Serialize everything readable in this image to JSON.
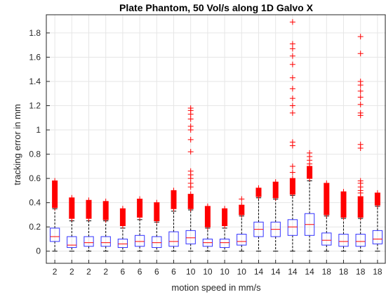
{
  "chart_data": {
    "type": "boxplot",
    "title": "Plate Phantom, 50 Vol/s along 1D Galvo X",
    "xlabel": "motion speed in mm/s",
    "ylabel": "tracking error in mm",
    "ylim": [
      -0.1,
      1.95
    ],
    "yticks": [
      "0",
      "0.2",
      "0.4",
      "0.6",
      "0.8",
      "1",
      "1.2",
      "1.4",
      "1.6",
      "1.8"
    ],
    "grid": true,
    "categories": [
      "2",
      "2",
      "2",
      "2",
      "6",
      "6",
      "6",
      "6",
      "10",
      "10",
      "10",
      "10",
      "14",
      "14",
      "14",
      "14",
      "18",
      "18",
      "18",
      "18"
    ],
    "colors": {
      "box": "#3333ff",
      "median": "#ff0000",
      "outlier": "#ff0000",
      "whisker": "#000000",
      "grid": "#e6e6e6",
      "axis": "#262626"
    },
    "boxes": [
      {
        "q1": 0.08,
        "median": 0.12,
        "q3": 0.19,
        "whisker_low": 0.0,
        "whisker_high": 0.35,
        "outlier_range": [
          0.36,
          0.58
        ]
      },
      {
        "q1": 0.03,
        "median": 0.05,
        "q3": 0.12,
        "whisker_low": 0.0,
        "whisker_high": 0.25,
        "outlier_range": [
          0.27,
          0.44
        ]
      },
      {
        "q1": 0.04,
        "median": 0.07,
        "q3": 0.12,
        "whisker_low": 0.0,
        "whisker_high": 0.25,
        "outlier_range": [
          0.27,
          0.42
        ]
      },
      {
        "q1": 0.04,
        "median": 0.07,
        "q3": 0.12,
        "whisker_low": 0.0,
        "whisker_high": 0.25,
        "outlier_range": [
          0.26,
          0.41
        ]
      },
      {
        "q1": 0.03,
        "median": 0.06,
        "q3": 0.1,
        "whisker_low": 0.0,
        "whisker_high": 0.19,
        "outlier_range": [
          0.21,
          0.35
        ]
      },
      {
        "q1": 0.04,
        "median": 0.08,
        "q3": 0.13,
        "whisker_low": 0.0,
        "whisker_high": 0.26,
        "outlier_range": [
          0.28,
          0.43
        ]
      },
      {
        "q1": 0.03,
        "median": 0.07,
        "q3": 0.12,
        "whisker_low": 0.0,
        "whisker_high": 0.24,
        "outlier_range": [
          0.25,
          0.4
        ]
      },
      {
        "q1": 0.04,
        "median": 0.08,
        "q3": 0.16,
        "whisker_low": 0.0,
        "whisker_high": 0.33,
        "outlier_range": [
          0.35,
          0.5
        ]
      },
      {
        "q1": 0.06,
        "median": 0.11,
        "q3": 0.17,
        "whisker_low": 0.0,
        "whisker_high": 0.34,
        "outlier_range": [
          0.35,
          0.47
        ],
        "extra_outliers": [
          0.53,
          0.56,
          0.6,
          0.63,
          0.66,
          0.82,
          0.92,
          1.0,
          1.03,
          1.09,
          1.13,
          1.16,
          1.18
        ]
      },
      {
        "q1": 0.04,
        "median": 0.07,
        "q3": 0.1,
        "whisker_low": 0.0,
        "whisker_high": 0.19,
        "outlier_range": [
          0.2,
          0.37
        ]
      },
      {
        "q1": 0.03,
        "median": 0.07,
        "q3": 0.1,
        "whisker_low": 0.0,
        "whisker_high": 0.19,
        "outlier_range": [
          0.21,
          0.35
        ]
      },
      {
        "q1": 0.05,
        "median": 0.08,
        "q3": 0.14,
        "whisker_low": 0.0,
        "whisker_high": 0.29,
        "outlier_range": [
          0.3,
          0.38
        ],
        "extra_outliers": [
          0.43
        ]
      },
      {
        "q1": 0.12,
        "median": 0.18,
        "q3": 0.24,
        "whisker_low": 0.0,
        "whisker_high": 0.44,
        "outlier_range": [
          0.45,
          0.52
        ]
      },
      {
        "q1": 0.12,
        "median": 0.18,
        "q3": 0.24,
        "whisker_low": 0.0,
        "whisker_high": 0.43,
        "outlier_range": [
          0.44,
          0.57
        ]
      },
      {
        "q1": 0.13,
        "median": 0.2,
        "q3": 0.26,
        "whisker_low": 0.0,
        "whisker_high": 0.46,
        "outlier_range": [
          0.47,
          0.6
        ],
        "extra_outliers": [
          0.65,
          0.7,
          0.87,
          0.9,
          1.14,
          1.2,
          1.26,
          1.34,
          1.43,
          1.54,
          1.61,
          1.67,
          1.71,
          1.89
        ]
      },
      {
        "q1": 0.13,
        "median": 0.22,
        "q3": 0.31,
        "whisker_low": 0.0,
        "whisker_high": 0.58,
        "outlier_range": [
          0.6,
          0.7
        ],
        "extra_outliers": [
          0.72,
          0.75,
          0.78,
          0.81
        ]
      },
      {
        "q1": 0.05,
        "median": 0.09,
        "q3": 0.15,
        "whisker_low": 0.0,
        "whisker_high": 0.29,
        "outlier_range": [
          0.3,
          0.56
        ]
      },
      {
        "q1": 0.04,
        "median": 0.08,
        "q3": 0.14,
        "whisker_low": 0.0,
        "whisker_high": 0.27,
        "outlier_range": [
          0.28,
          0.49
        ]
      },
      {
        "q1": 0.04,
        "median": 0.08,
        "q3": 0.14,
        "whisker_low": 0.0,
        "whisker_high": 0.27,
        "outlier_range": [
          0.28,
          0.45
        ],
        "extra_outliers": [
          0.48,
          0.5,
          0.53,
          0.56,
          0.58,
          0.85,
          0.88,
          1.12,
          1.14,
          1.21,
          1.27,
          1.32,
          1.37,
          1.4,
          1.63,
          1.77
        ]
      },
      {
        "q1": 0.06,
        "median": 0.1,
        "q3": 0.17,
        "whisker_low": 0.0,
        "whisker_high": 0.37,
        "outlier_range": [
          0.38,
          0.48
        ]
      }
    ]
  }
}
